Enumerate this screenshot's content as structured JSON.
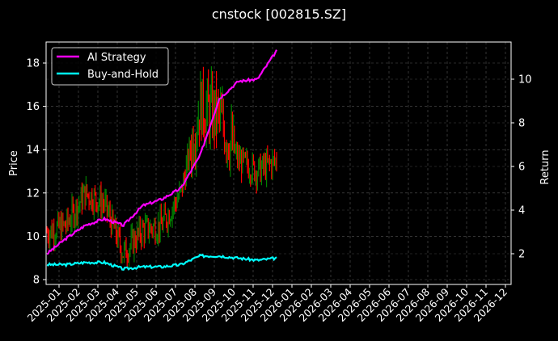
{
  "chart_data": {
    "type": "line",
    "title": "cnstock [002815.SZ]",
    "xlabel": "",
    "ylabel": "Price",
    "ylabel_right": "Return",
    "ylim": [
      7.8,
      19.0
    ],
    "ylim_right": [
      0.7,
      11.7
    ],
    "yticks": [
      8,
      10,
      12,
      14,
      16,
      18
    ],
    "yticks_right": [
      2,
      4,
      6,
      8,
      10
    ],
    "xticks": [
      "2025-01",
      "2025-02",
      "2025-03",
      "2025-04",
      "2025-05",
      "2025-06",
      "2025-07",
      "2025-08",
      "2025-09",
      "2025-10",
      "2025-11",
      "2025-12",
      "2026-01",
      "2026-02",
      "2026-03",
      "2026-04",
      "2026-05",
      "2026-06",
      "2026-07",
      "2026-08",
      "2026-09",
      "2026-10",
      "2026-11",
      "2026-12"
    ],
    "grid": true,
    "legend_position": "upper left",
    "legend": [
      "AI Strategy",
      "Buy-and-Hold"
    ],
    "colors": {
      "ai_strategy": "#ff00ff",
      "buy_and_hold": "#00ffff",
      "up_bar": "#008000",
      "down_bar": "#ff0000",
      "background": "#000000",
      "grid": "#555555"
    },
    "series": [
      {
        "name": "AI Strategy",
        "axis": "right",
        "x": [
          "2025-01",
          "2025-02",
          "2025-03",
          "2025-04",
          "2025-05",
          "2025-06",
          "2025-07",
          "2025-08",
          "2025-09",
          "2025-10",
          "2025-11",
          "2025-12",
          "2025-12-10"
        ],
        "values": [
          2.0,
          2.7,
          3.3,
          3.6,
          3.3,
          4.2,
          4.5,
          5.0,
          6.5,
          9.1,
          9.9,
          10.0,
          11.3
        ]
      },
      {
        "name": "Buy-and-Hold",
        "axis": "right",
        "x": [
          "2025-01",
          "2025-02",
          "2025-03",
          "2025-04",
          "2025-05",
          "2025-06",
          "2025-07",
          "2025-08",
          "2025-09",
          "2025-10",
          "2025-11",
          "2025-12",
          "2025-12-10"
        ],
        "values": [
          1.5,
          1.5,
          1.6,
          1.6,
          1.3,
          1.4,
          1.4,
          1.5,
          1.9,
          1.9,
          1.8,
          1.7,
          1.8
        ]
      },
      {
        "name": "Price",
        "axis": "left",
        "type": "ohlc",
        "x": [
          "2025-01",
          "2025-02",
          "2025-03",
          "2025-04",
          "2025-05",
          "2025-06",
          "2025-07",
          "2025-08",
          "2025-09",
          "2025-10",
          "2025-11",
          "2025-12",
          "2025-12-10"
        ],
        "values": [
          10.2,
          10.5,
          12.0,
          11.5,
          9.2,
          10.3,
          10.5,
          12.0,
          16.0,
          15.5,
          13.5,
          13.0,
          13.5
        ]
      }
    ]
  }
}
